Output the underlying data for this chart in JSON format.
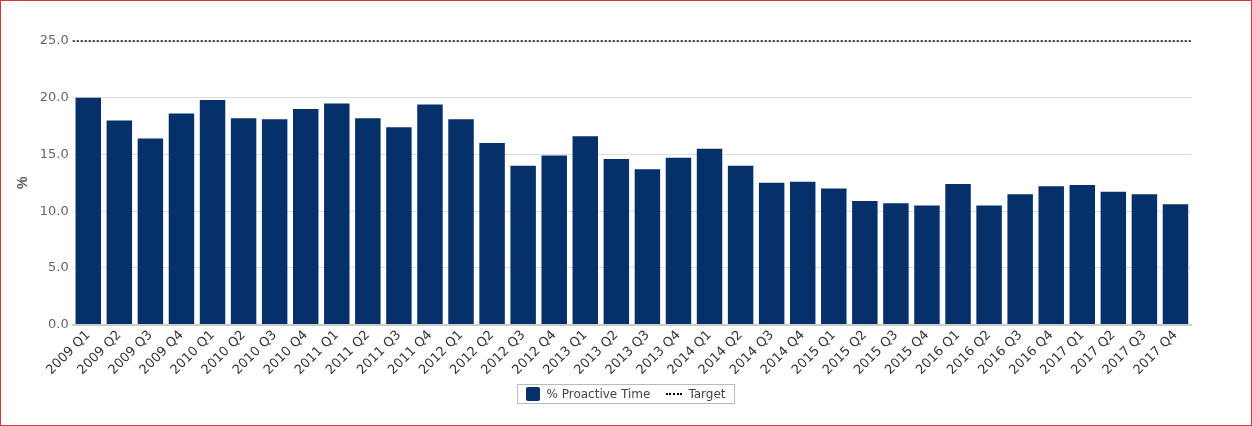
{
  "chart_data": {
    "type": "bar",
    "ylabel": "%",
    "categories": [
      "2009 Q1",
      "2009 Q2",
      "2009 Q3",
      "2009 Q4",
      "2010 Q1",
      "2010 Q2",
      "2010 Q3",
      "2010 Q4",
      "2011 Q1",
      "2011 Q2",
      "2011 Q3",
      "2011 Q4",
      "2012 Q1",
      "2012 Q2",
      "2012 Q3",
      "2012 Q4",
      "2013 Q1",
      "2013 Q2",
      "2013 Q3",
      "2013 Q4",
      "2014 Q1",
      "2014 Q2",
      "2014 Q3",
      "2014 Q4",
      "2015 Q1",
      "2015 Q2",
      "2015 Q3",
      "2015 Q4",
      "2016 Q1",
      "2016 Q2",
      "2016 Q3",
      "2016 Q4",
      "2017 Q1",
      "2017 Q2",
      "2017 Q3",
      "2017 Q4"
    ],
    "series": [
      {
        "name": "% Proactive Time",
        "color": "#05306a",
        "values": [
          20.0,
          18.0,
          16.4,
          18.6,
          19.8,
          18.2,
          18.1,
          19.0,
          19.5,
          18.2,
          17.4,
          19.4,
          18.1,
          16.0,
          14.0,
          14.9,
          16.6,
          14.6,
          13.7,
          14.7,
          15.5,
          14.0,
          12.5,
          12.6,
          12.0,
          10.9,
          10.7,
          10.5,
          12.4,
          10.5,
          11.5,
          12.2,
          12.3,
          11.7,
          11.5,
          10.6
        ]
      }
    ],
    "ylim": [
      0,
      25
    ],
    "yticks": [
      {
        "value": 0,
        "label": "0.0"
      },
      {
        "value": 5,
        "label": "5.0"
      },
      {
        "value": 10,
        "label": "10.0"
      },
      {
        "value": 15,
        "label": "15.0"
      },
      {
        "value": 20,
        "label": "20.0"
      },
      {
        "value": 25,
        "label": "25.0"
      }
    ],
    "ref_lines": [
      {
        "axis": "y",
        "value": 25,
        "label": "Target",
        "color": "#000000",
        "line_style": "dotted"
      }
    ],
    "grid": "y",
    "legend": "bottom"
  }
}
